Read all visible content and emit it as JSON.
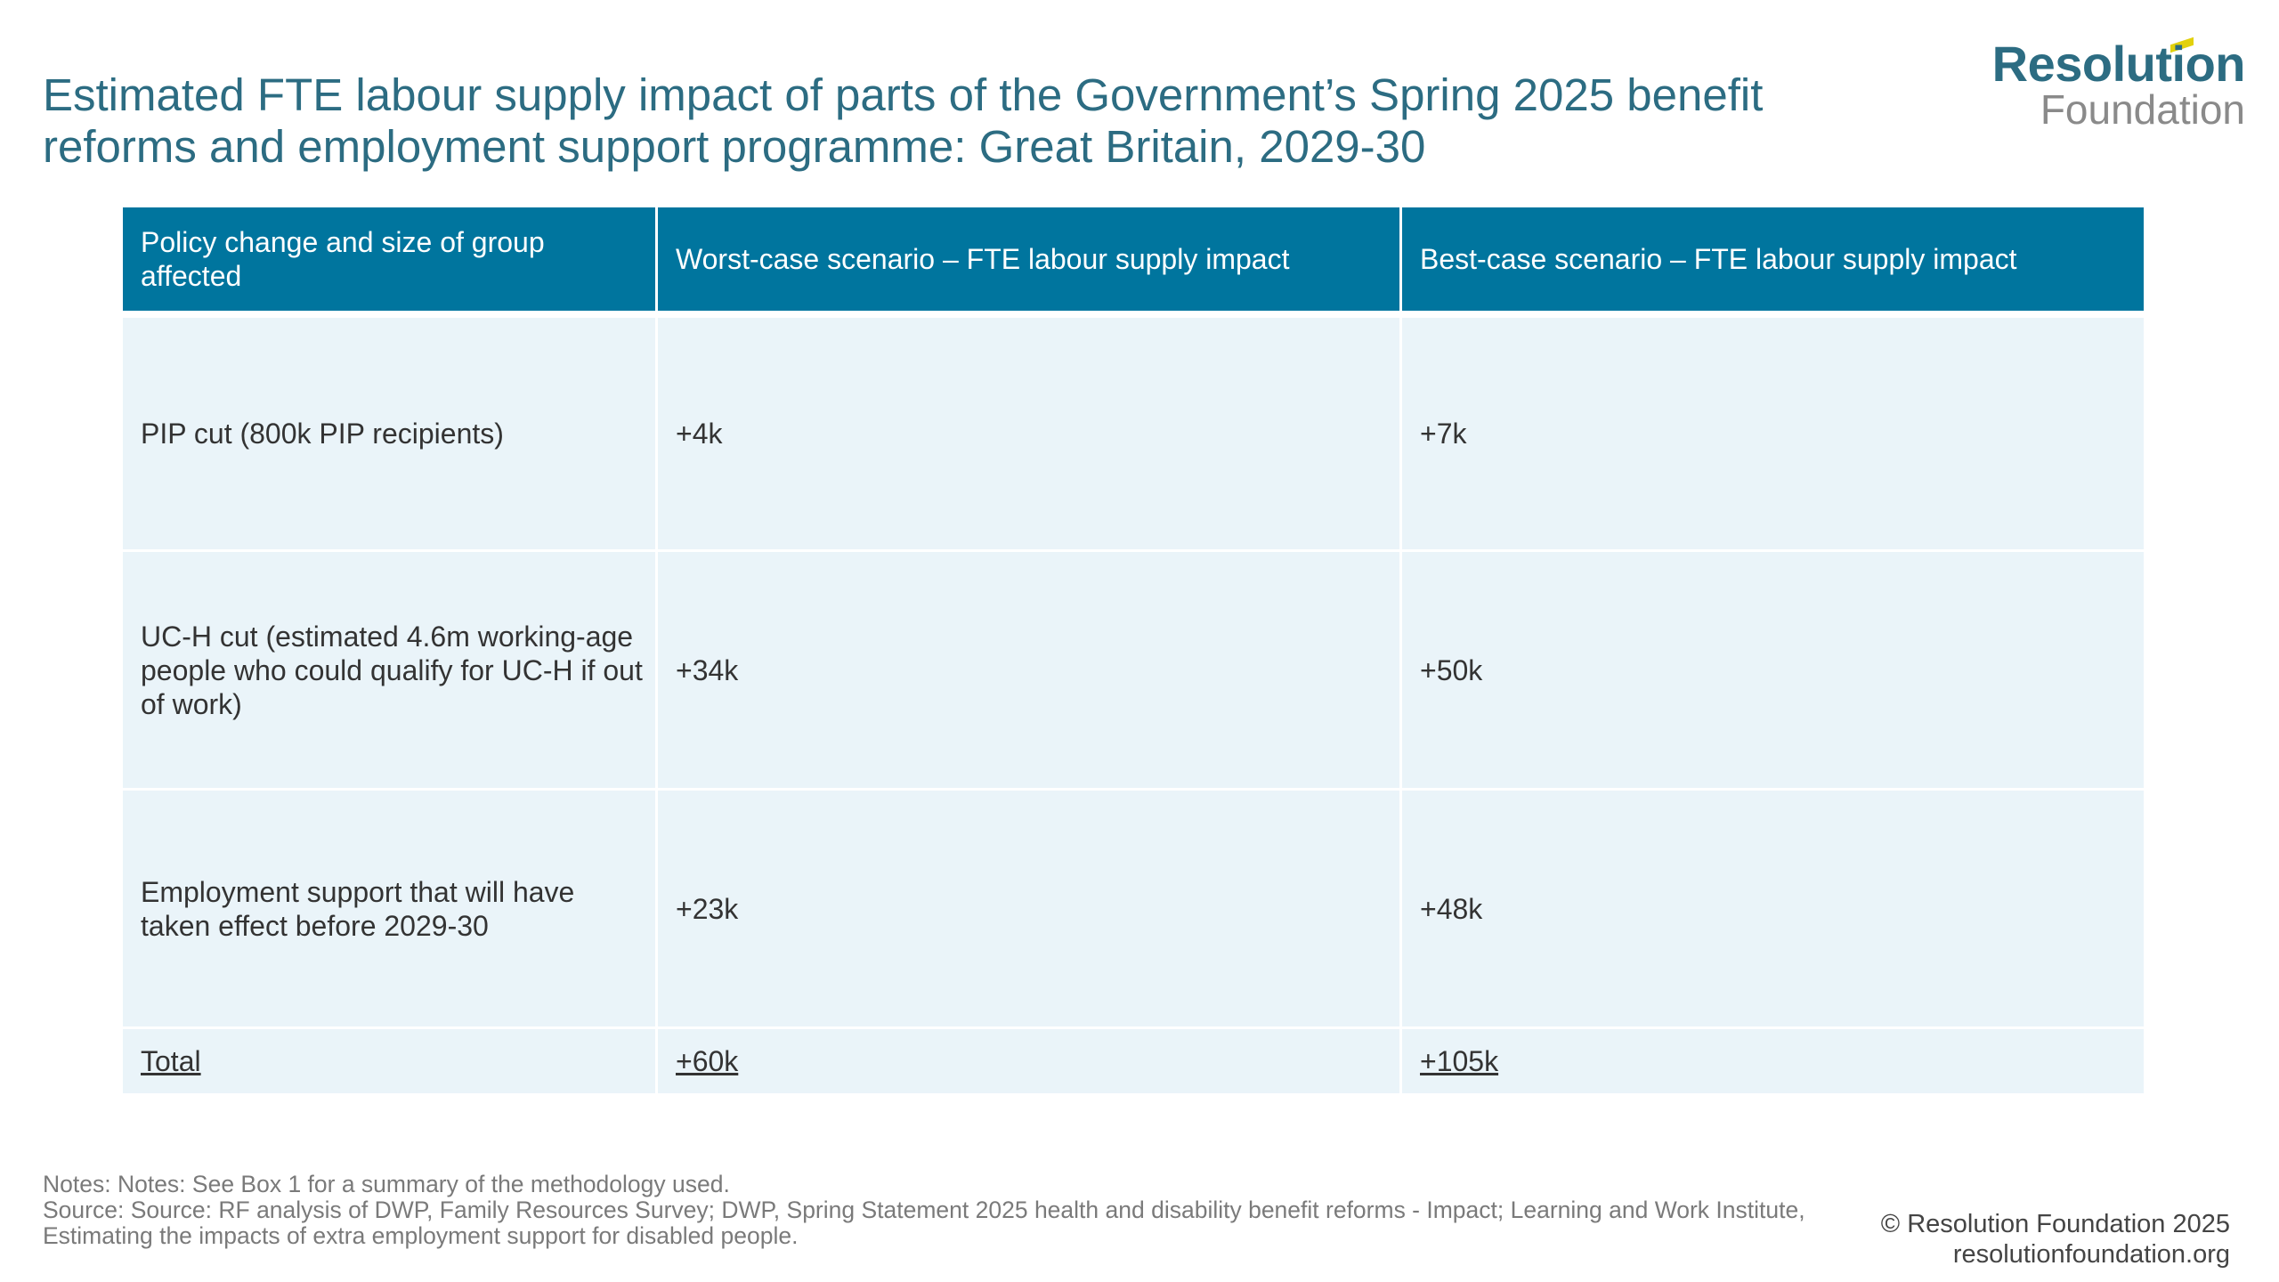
{
  "title": "Estimated FTE labour supply impact of parts of the Government’s Spring 2025 benefit reforms and employment support programme: Great Britain, 2029-30",
  "logo": {
    "line1": "Resolution",
    "line2": "Foundation",
    "accent_color": "#e2d10c"
  },
  "colors": {
    "title": "#2c6c82",
    "header_bg": "#00759e",
    "row_bg": "#eaf4f9"
  },
  "table": {
    "headers": [
      "Policy change and size of group affected",
      "Worst-case scenario – FTE labour supply impact",
      "Best-case scenario – FTE labour supply impact"
    ],
    "rows": [
      [
        "PIP cut (800k PIP recipients)",
        "+4k",
        "+7k"
      ],
      [
        "UC-H cut (estimated 4.6m working-age people who could qualify for UC-H if out of work)",
        "+34k",
        "+50k"
      ],
      [
        "Employment support that will have taken effect before 2029-30",
        "+23k",
        "+48k"
      ]
    ],
    "total": [
      "Total",
      "+60k",
      "+105k"
    ]
  },
  "notes": {
    "notes_line": "Notes: Notes: See Box 1 for a summary of the methodology used.",
    "source_line": "Source: Source: RF analysis of DWP, Family Resources Survey; DWP, Spring Statement 2025 health and disability benefit reforms - Impact; Learning and Work Institute, Estimating the impacts of extra employment support for disabled people."
  },
  "footer": {
    "copyright": "© Resolution Foundation 2025",
    "website": "resolutionfoundation.org"
  }
}
